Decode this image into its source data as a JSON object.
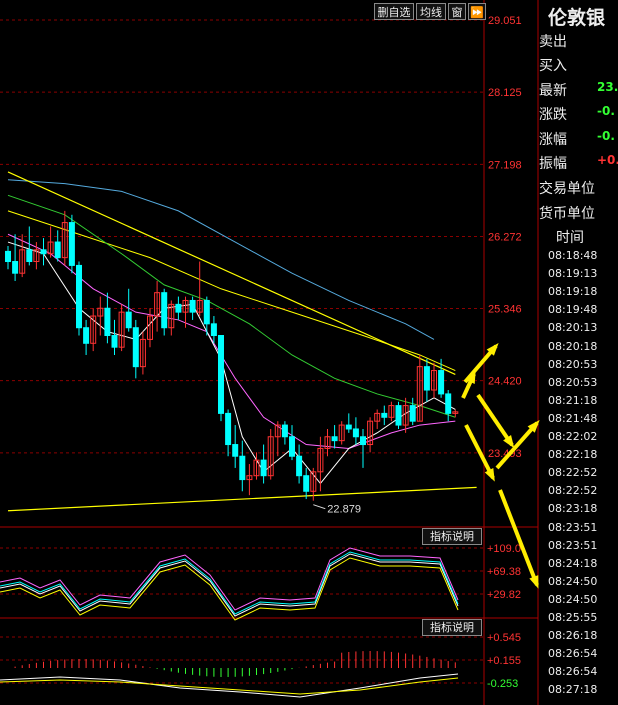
{
  "toolbar": {
    "remove_watchlist": "删自选",
    "line_type": "均线",
    "window": "窗",
    "forward": "⏩"
  },
  "panel": {
    "title": "伦敦银",
    "sell_label": "卖出",
    "buy_label": "买入",
    "latest_label": "最新",
    "latest_value": "23.",
    "change_label": "涨跌",
    "change_value": "-0.",
    "change_pct_label": "涨幅",
    "change_pct_value": "-0.",
    "amplitude_label": "振幅",
    "amplitude_value": "+0.",
    "trade_unit_label": "交易单位",
    "currency_label": "货币单位",
    "time_header": "时间",
    "times": [
      "08:18:48",
      "08:19:13",
      "08:19:18",
      "08:19:48",
      "08:20:13",
      "08:20:18",
      "08:20:53",
      "08:20:53",
      "08:21:18",
      "08:21:48",
      "08:22:02",
      "08:22:18",
      "08:22:52",
      "08:22:52",
      "08:23:18",
      "08:23:51",
      "08:23:51",
      "08:24:18",
      "08:24:50",
      "08:24:50",
      "08:25:55",
      "08:26:18",
      "08:26:54",
      "08:26:54",
      "08:27:18"
    ]
  },
  "indicator_buttons": [
    "指标说明",
    "指标说明"
  ],
  "colors": {
    "up": "#ff3333",
    "down": "#00ffff",
    "ma_white": "#ffffff",
    "ma_yellow": "#ffff00",
    "ma_magenta": "#ff66ff",
    "ma_green": "#33cc33",
    "ma_blue": "#55aadd",
    "grid": "#8b0000",
    "arrow": "#ffee00",
    "axis_label": "#ff3333",
    "latest": "#33ff33",
    "amplitude": "#ff3333"
  },
  "chart_data": {
    "type": "candlestick",
    "price_axis": {
      "ticks": [
        29.051,
        28.125,
        27.198,
        26.272,
        25.346,
        24.42,
        23.493
      ],
      "ylim": [
        22.567,
        29.051
      ]
    },
    "low_annotation": "22.879",
    "candles": [
      [
        26.08,
        26.15,
        25.85,
        25.95
      ],
      [
        25.95,
        26.3,
        25.7,
        25.8
      ],
      [
        25.8,
        26.3,
        25.75,
        26.1
      ],
      [
        26.1,
        26.4,
        25.9,
        25.95
      ],
      [
        25.95,
        26.2,
        25.85,
        26.1
      ],
      [
        26.1,
        26.25,
        25.9,
        26.05
      ],
      [
        26.05,
        26.4,
        26.0,
        26.2
      ],
      [
        26.2,
        26.35,
        25.95,
        26.0
      ],
      [
        26.0,
        26.6,
        25.9,
        26.45
      ],
      [
        26.45,
        26.55,
        25.8,
        25.9
      ],
      [
        25.9,
        25.95,
        25.0,
        25.1
      ],
      [
        25.1,
        25.2,
        24.75,
        24.9
      ],
      [
        24.9,
        25.35,
        24.8,
        25.25
      ],
      [
        25.25,
        25.5,
        25.0,
        25.35
      ],
      [
        25.35,
        25.55,
        24.9,
        25.0
      ],
      [
        25.0,
        25.2,
        24.75,
        24.85
      ],
      [
        24.85,
        25.4,
        24.8,
        25.3
      ],
      [
        25.3,
        25.6,
        25.05,
        25.1
      ],
      [
        25.1,
        25.2,
        24.45,
        24.6
      ],
      [
        24.6,
        25.05,
        24.5,
        24.95
      ],
      [
        24.95,
        25.35,
        24.85,
        25.25
      ],
      [
        25.25,
        25.7,
        25.05,
        25.55
      ],
      [
        25.55,
        25.6,
        25.0,
        25.1
      ],
      [
        25.1,
        25.45,
        25.0,
        25.4
      ],
      [
        25.4,
        25.5,
        25.2,
        25.3
      ],
      [
        25.3,
        25.5,
        25.1,
        25.45
      ],
      [
        25.45,
        25.5,
        25.2,
        25.3
      ],
      [
        25.3,
        25.95,
        25.25,
        25.45
      ],
      [
        25.45,
        25.5,
        25.0,
        25.15
      ],
      [
        25.15,
        25.25,
        24.9,
        25.0
      ],
      [
        25.0,
        25.0,
        23.9,
        24.0
      ],
      [
        24.0,
        24.05,
        23.45,
        23.6
      ],
      [
        23.6,
        23.85,
        23.3,
        23.45
      ],
      [
        23.45,
        23.65,
        23.0,
        23.15
      ],
      [
        23.15,
        23.35,
        22.95,
        23.2
      ],
      [
        23.2,
        23.5,
        23.15,
        23.4
      ],
      [
        23.4,
        23.6,
        23.1,
        23.2
      ],
      [
        23.2,
        23.8,
        23.15,
        23.7
      ],
      [
        23.7,
        23.9,
        23.45,
        23.85
      ],
      [
        23.85,
        23.9,
        23.6,
        23.7
      ],
      [
        23.7,
        23.85,
        23.4,
        23.45
      ],
      [
        23.45,
        23.6,
        23.1,
        23.2
      ],
      [
        23.2,
        23.3,
        22.9,
        23.0
      ],
      [
        23.0,
        23.3,
        22.879,
        23.25
      ],
      [
        23.25,
        23.7,
        23.0,
        23.55
      ],
      [
        23.55,
        23.8,
        23.45,
        23.7
      ],
      [
        23.7,
        23.85,
        23.55,
        23.65
      ],
      [
        23.65,
        23.9,
        23.6,
        23.85
      ],
      [
        23.85,
        24.0,
        23.75,
        23.8
      ],
      [
        23.8,
        23.95,
        23.6,
        23.7
      ],
      [
        23.7,
        23.8,
        23.3,
        23.6
      ],
      [
        23.6,
        23.95,
        23.5,
        23.9
      ],
      [
        23.9,
        24.05,
        23.8,
        24.0
      ],
      [
        24.0,
        24.1,
        23.85,
        23.95
      ],
      [
        23.95,
        24.15,
        23.9,
        24.1
      ],
      [
        24.1,
        24.15,
        23.8,
        23.85
      ],
      [
        23.85,
        24.2,
        23.75,
        24.1
      ],
      [
        24.1,
        24.2,
        23.85,
        23.9
      ],
      [
        23.9,
        24.75,
        23.9,
        24.6
      ],
      [
        24.6,
        24.7,
        24.15,
        24.3
      ],
      [
        24.3,
        24.65,
        24.2,
        24.55
      ],
      [
        24.55,
        24.7,
        24.2,
        24.25
      ],
      [
        24.25,
        24.3,
        23.9,
        24.0
      ],
      [
        24.0,
        24.05,
        23.95,
        24.02
      ]
    ],
    "ma_lines": [
      {
        "color": "ma_yellow",
        "points": [
          [
            0,
            26.6
          ],
          [
            10,
            26.3
          ],
          [
            20,
            26.0
          ],
          [
            30,
            25.6
          ],
          [
            40,
            25.3
          ],
          [
            50,
            25.0
          ],
          [
            58,
            24.75
          ],
          [
            63,
            24.55
          ]
        ]
      },
      {
        "color": "ma_blue",
        "points": [
          [
            0,
            27.0
          ],
          [
            8,
            26.95
          ],
          [
            16,
            26.85
          ],
          [
            24,
            26.6
          ],
          [
            32,
            26.2
          ],
          [
            40,
            25.8
          ],
          [
            48,
            25.45
          ],
          [
            56,
            25.15
          ],
          [
            60,
            24.95
          ]
        ]
      },
      {
        "color": "ma_green",
        "points": [
          [
            0,
            26.8
          ],
          [
            8,
            26.55
          ],
          [
            16,
            26.05
          ],
          [
            22,
            25.65
          ],
          [
            28,
            25.45
          ],
          [
            34,
            25.15
          ],
          [
            40,
            24.75
          ],
          [
            46,
            24.45
          ],
          [
            52,
            24.25
          ],
          [
            58,
            24.1
          ],
          [
            63,
            23.95
          ]
        ]
      },
      {
        "color": "ma_magenta",
        "points": [
          [
            0,
            26.3
          ],
          [
            6,
            26.05
          ],
          [
            12,
            25.6
          ],
          [
            18,
            25.3
          ],
          [
            24,
            25.2
          ],
          [
            28,
            25.05
          ],
          [
            32,
            24.45
          ],
          [
            36,
            23.95
          ],
          [
            42,
            23.6
          ],
          [
            48,
            23.55
          ],
          [
            54,
            23.75
          ],
          [
            58,
            23.85
          ],
          [
            63,
            23.9
          ]
        ]
      },
      {
        "color": "ma_white",
        "points": [
          [
            0,
            26.2
          ],
          [
            5,
            26.05
          ],
          [
            10,
            25.35
          ],
          [
            14,
            25.05
          ],
          [
            18,
            24.95
          ],
          [
            22,
            25.35
          ],
          [
            26,
            25.4
          ],
          [
            30,
            24.7
          ],
          [
            33,
            23.7
          ],
          [
            36,
            23.25
          ],
          [
            40,
            23.55
          ],
          [
            44,
            23.1
          ],
          [
            48,
            23.55
          ],
          [
            52,
            23.75
          ],
          [
            56,
            24.0
          ],
          [
            60,
            24.2
          ],
          [
            63,
            24.05
          ]
        ]
      }
    ],
    "trend_lines": [
      {
        "color": "ma_yellow",
        "from": [
          0,
          27.1
        ],
        "to": [
          63,
          24.5
        ]
      },
      {
        "color": "ma_yellow",
        "from": [
          0,
          22.75
        ],
        "to": [
          66,
          23.05
        ]
      }
    ],
    "indicator1": {
      "ticks": [
        "+109.0",
        "+69.38",
        "+29.82"
      ]
    },
    "indicator2": {
      "ticks": [
        "+0.545",
        "+0.155",
        "-0.253"
      ]
    }
  }
}
